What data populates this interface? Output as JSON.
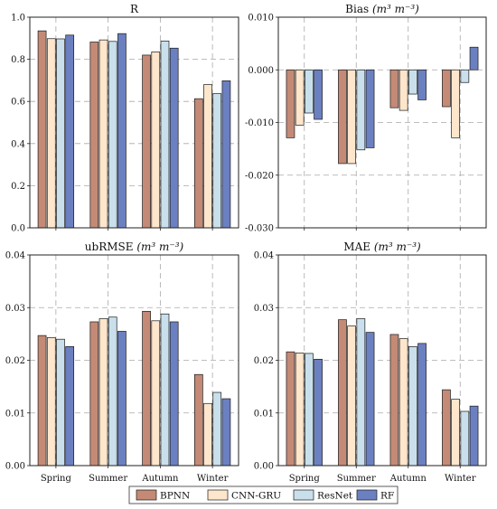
{
  "chart_data": [
    {
      "type": "bar",
      "title": "R",
      "title_unit": "",
      "categories": [
        "Spring",
        "Summer",
        "Autumn",
        "Winter"
      ],
      "ylim": [
        0.0,
        1.0
      ],
      "yticks": [
        "0.0",
        "0.2",
        "0.4",
        "0.6",
        "0.8",
        "1.0"
      ],
      "grid": true,
      "series": [
        {
          "name": "BPNN",
          "values": [
            0.935,
            0.882,
            0.82,
            0.613
          ]
        },
        {
          "name": "CNN-GRU",
          "values": [
            0.898,
            0.892,
            0.835,
            0.68
          ]
        },
        {
          "name": "ResNet",
          "values": [
            0.897,
            0.885,
            0.887,
            0.637
          ]
        },
        {
          "name": "RF",
          "values": [
            0.915,
            0.922,
            0.853,
            0.698
          ]
        }
      ]
    },
    {
      "type": "bar",
      "title": "Bias",
      "title_unit": "(m³ m⁻³)",
      "categories": [
        "Spring",
        "Summer",
        "Autumn",
        "Winter"
      ],
      "ylim": [
        -0.03,
        0.01
      ],
      "yticks": [
        "-0.030",
        "-0.020",
        "-0.010",
        "0.000",
        "0.010"
      ],
      "grid": true,
      "series": [
        {
          "name": "BPNN",
          "values": [
            -0.0129,
            -0.0178,
            -0.0072,
            -0.007
          ]
        },
        {
          "name": "CNN-GRU",
          "values": [
            -0.0105,
            -0.0178,
            -0.0077,
            -0.0129
          ]
        },
        {
          "name": "ResNet",
          "values": [
            -0.0082,
            -0.0152,
            -0.0046,
            -0.0024
          ]
        },
        {
          "name": "RF",
          "values": [
            -0.0094,
            -0.0148,
            -0.0057,
            0.0043
          ]
        }
      ]
    },
    {
      "type": "bar",
      "title": "ubRMSE",
      "title_unit": "(m³ m⁻³)",
      "categories": [
        "Spring",
        "Summer",
        "Autumn",
        "Winter"
      ],
      "ylim": [
        0.0,
        0.04
      ],
      "yticks": [
        "0.00",
        "0.01",
        "0.02",
        "0.03",
        "0.04"
      ],
      "grid": true,
      "series": [
        {
          "name": "BPNN",
          "values": [
            0.0247,
            0.0273,
            0.0293,
            0.0173
          ]
        },
        {
          "name": "CNN-GRU",
          "values": [
            0.0243,
            0.0279,
            0.0275,
            0.0118
          ]
        },
        {
          "name": "ResNet",
          "values": [
            0.024,
            0.0282,
            0.0288,
            0.0139
          ]
        },
        {
          "name": "RF",
          "values": [
            0.0226,
            0.0255,
            0.0273,
            0.0127
          ]
        }
      ]
    },
    {
      "type": "bar",
      "title": "MAE",
      "title_unit": "(m³ m⁻³)",
      "categories": [
        "Spring",
        "Summer",
        "Autumn",
        "Winter"
      ],
      "ylim": [
        0.0,
        0.04
      ],
      "yticks": [
        "0.00",
        "0.01",
        "0.02",
        "0.03",
        "0.04"
      ],
      "grid": true,
      "series": [
        {
          "name": "BPNN",
          "values": [
            0.0216,
            0.0277,
            0.0249,
            0.0144
          ]
        },
        {
          "name": "CNN-GRU",
          "values": [
            0.0214,
            0.0265,
            0.0241,
            0.0126
          ]
        },
        {
          "name": "ResNet",
          "values": [
            0.0213,
            0.0279,
            0.0226,
            0.0103
          ]
        },
        {
          "name": "RF",
          "values": [
            0.0202,
            0.0253,
            0.0232,
            0.0113
          ]
        }
      ]
    }
  ],
  "legend": {
    "position": "bottom-center",
    "items": [
      {
        "label": "BPNN",
        "color": "#c48a76"
      },
      {
        "label": "CNN-GRU",
        "color": "#fde6cc"
      },
      {
        "label": "ResNet",
        "color": "#c9e0ec"
      },
      {
        "label": "RF",
        "color": "#6b80c0"
      }
    ]
  },
  "colors": {
    "grid": "#a9a9a9",
    "axis": "#222222",
    "bar_edge": "#1a1a1a"
  }
}
